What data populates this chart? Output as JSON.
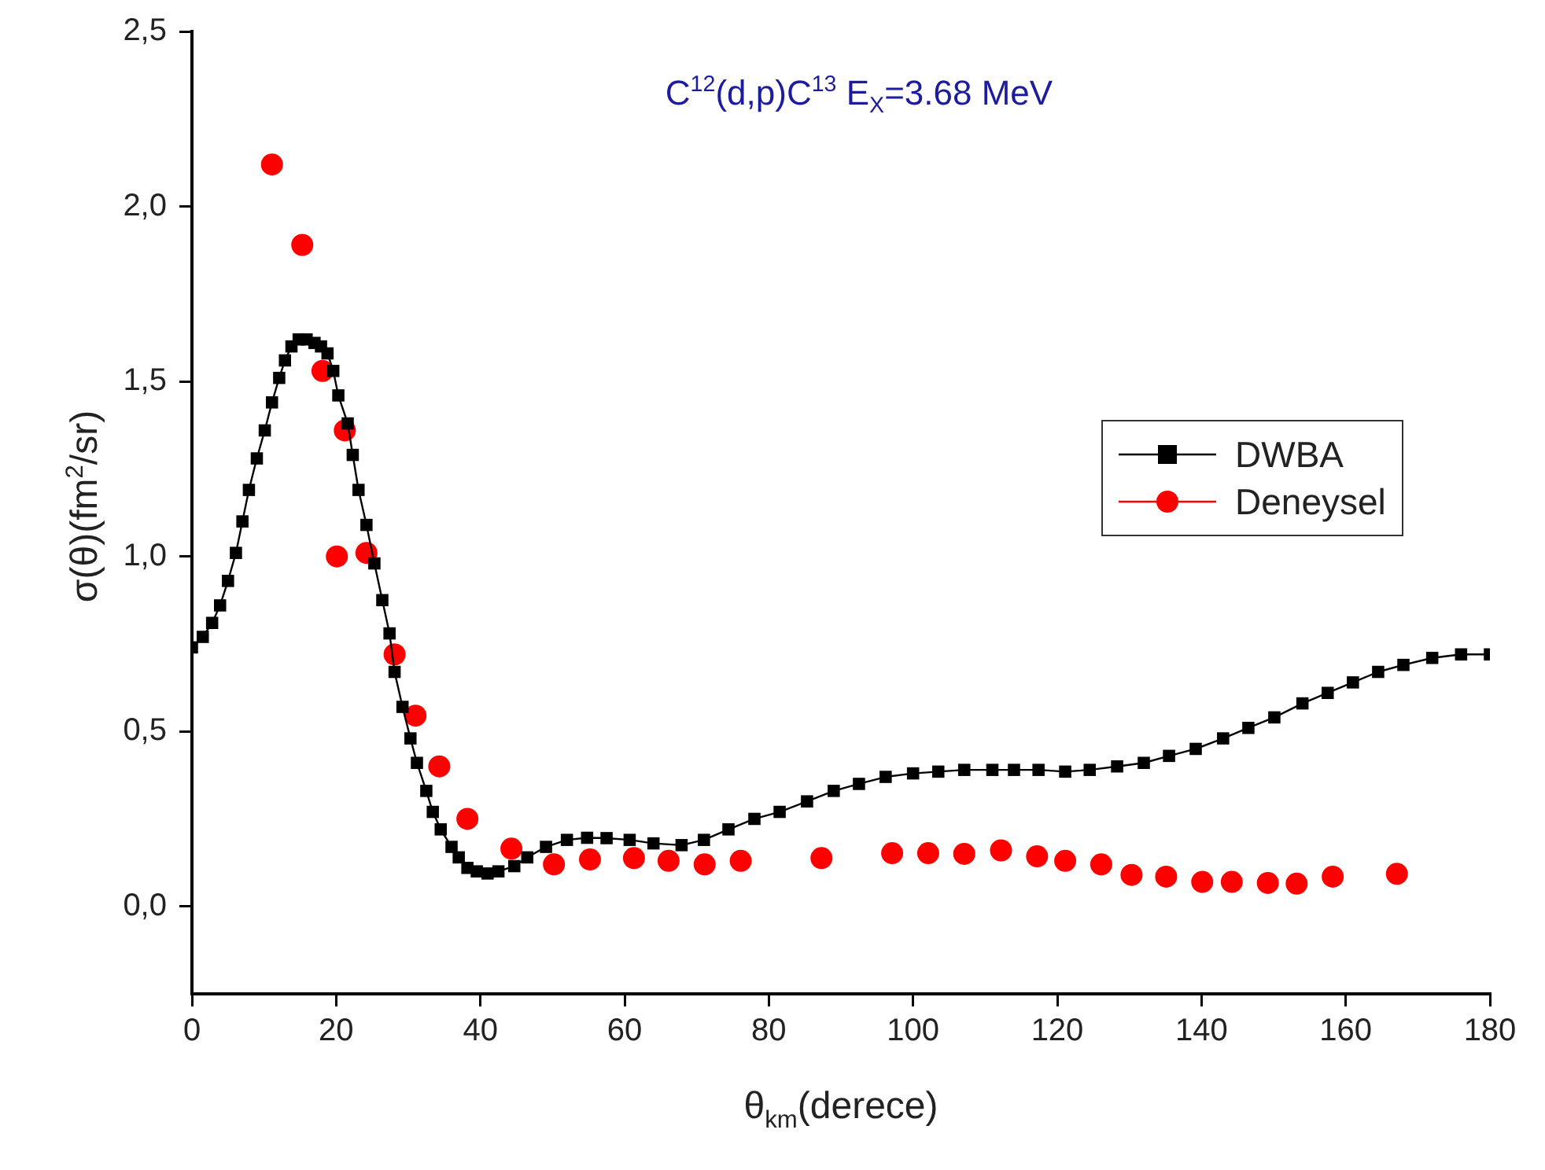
{
  "chart_data": {
    "type": "line",
    "title": "C$^{12}$(d,p)C$^{13}$ E$_{X}$=3.68 MeV",
    "xlabel": "θ$_{km}$(derece)",
    "ylabel": "σ(θ)(fm$^{2}$/sr)",
    "xlim": [
      0,
      180
    ],
    "xticks": [
      0,
      20,
      40,
      60,
      80,
      100,
      120,
      140,
      160,
      180
    ],
    "ylim": [
      -0.25,
      2.5
    ],
    "yticks": [
      {
        "value": 0,
        "label": "0,0"
      },
      {
        "value": 0.5,
        "label": "0,5"
      },
      {
        "value": 1,
        "label": "1,0"
      },
      {
        "value": 1.5,
        "label": "1,5"
      },
      {
        "value": 2,
        "label": "2,0"
      },
      {
        "value": 2.5,
        "label": "2,5"
      }
    ],
    "legend": "right",
    "grid": false,
    "series": [
      {
        "name": "DWBA",
        "type": "line",
        "color": "#000000",
        "marker": "square",
        "line_style": "solid",
        "x": [
          0,
          1.5,
          2.8,
          3.9,
          5,
          6.1,
          7,
          7.9,
          9,
          10.1,
          11.1,
          12.1,
          12.9,
          13.8,
          14.8,
          15.9,
          17,
          17.9,
          18.8,
          19.6,
          20.3,
          21.6,
          22.3,
          23.1,
          24.2,
          25.3,
          26.4,
          27.4,
          28.1,
          29.2,
          30.3,
          31.2,
          32.5,
          33.4,
          34.5,
          36,
          37,
          38.2,
          39.5,
          41,
          42.5,
          44.7,
          46.5,
          49.1,
          52,
          54.8,
          57.5,
          60.7,
          64,
          67.9,
          71,
          74.4,
          78,
          81.5,
          85.3,
          89,
          92.5,
          96.2,
          100,
          103.5,
          107.1,
          111,
          114,
          117.4,
          121.1,
          124.5,
          128.3,
          132,
          135.5,
          139.2,
          143,
          146.5,
          150.1,
          154,
          157.5,
          161,
          164.5,
          168,
          172,
          176,
          180
        ],
        "values": [
          0.74,
          0.77,
          0.81,
          0.86,
          0.93,
          1.01,
          1.1,
          1.19,
          1.28,
          1.36,
          1.44,
          1.51,
          1.56,
          1.6,
          1.62,
          1.62,
          1.61,
          1.6,
          1.58,
          1.53,
          1.46,
          1.38,
          1.29,
          1.19,
          1.09,
          0.98,
          0.875,
          0.78,
          0.67,
          0.57,
          0.48,
          0.41,
          0.33,
          0.27,
          0.22,
          0.17,
          0.14,
          0.11,
          0.1,
          0.094,
          0.1,
          0.115,
          0.14,
          0.17,
          0.19,
          0.196,
          0.195,
          0.19,
          0.18,
          0.175,
          0.19,
          0.22,
          0.25,
          0.27,
          0.3,
          0.33,
          0.35,
          0.37,
          0.38,
          0.385,
          0.39,
          0.39,
          0.39,
          0.39,
          0.385,
          0.39,
          0.4,
          0.41,
          0.43,
          0.45,
          0.48,
          0.51,
          0.54,
          0.58,
          0.61,
          0.64,
          0.67,
          0.69,
          0.71,
          0.72,
          0.72
        ]
      },
      {
        "name": "Deneysel",
        "type": "scatter",
        "color": "#ff0000",
        "marker": "circle",
        "x": [
          11.1,
          15.3,
          18.1,
          21.2,
          20.1,
          24.2,
          28.1,
          31,
          34.3,
          38.2,
          44.3,
          50.2,
          55.2,
          61.3,
          66.1,
          71.1,
          76.1,
          87.3,
          97.1,
          102.1,
          107.1,
          112.2,
          117.2,
          121.1,
          126.1,
          130.3,
          135.1,
          140.1,
          144.2,
          149.2,
          153.2,
          158.2,
          167.1
        ],
        "values": [
          2.12,
          1.89,
          1.53,
          1.36,
          1,
          1.01,
          0.72,
          0.545,
          0.4,
          0.25,
          0.165,
          0.12,
          0.134,
          0.138,
          0.13,
          0.12,
          0.13,
          0.138,
          0.152,
          0.152,
          0.15,
          0.16,
          0.143,
          0.13,
          0.12,
          0.09,
          0.085,
          0.07,
          0.07,
          0.067,
          0.065,
          0.085,
          0.093
        ]
      }
    ]
  }
}
